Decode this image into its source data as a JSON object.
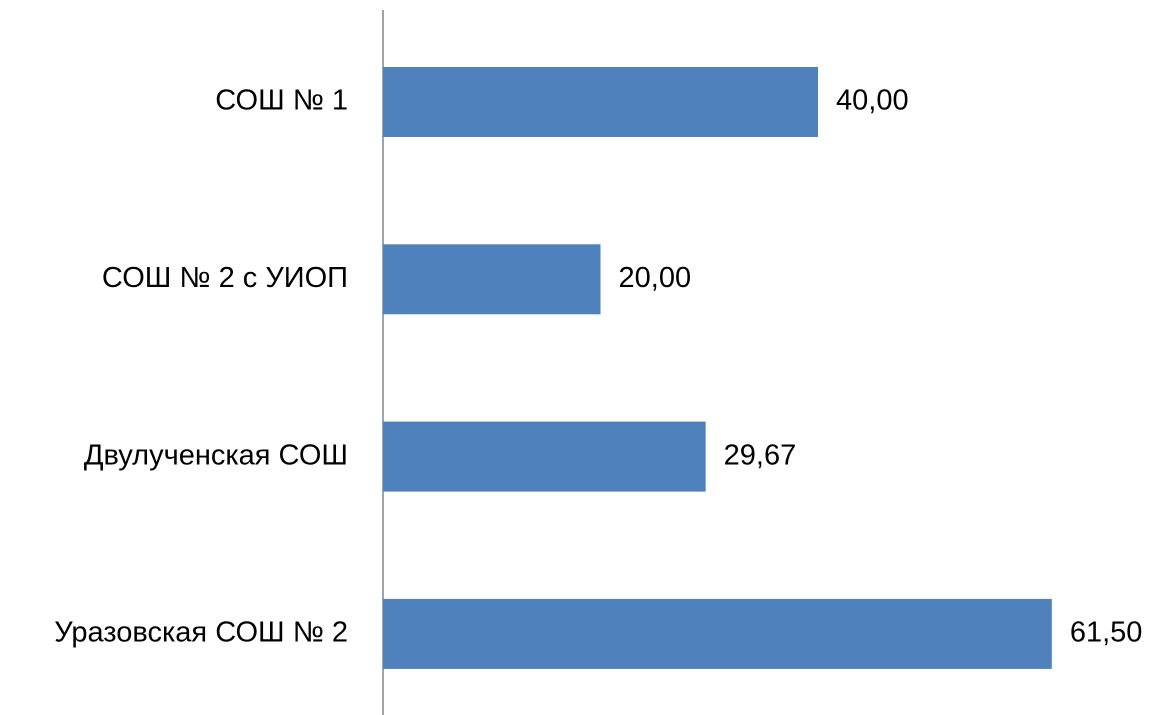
{
  "chart_data": {
    "type": "bar",
    "orientation": "horizontal",
    "categories": [
      "СОШ № 1",
      "СОШ № 2 с УИОП",
      "Двулученская СОШ",
      "Уразовская СОШ № 2"
    ],
    "values": [
      40,
      20,
      29.67,
      61.5
    ],
    "value_labels": [
      "40,00",
      "20,00",
      "29,67",
      "61,50"
    ],
    "color": "#4f81bd"
  }
}
